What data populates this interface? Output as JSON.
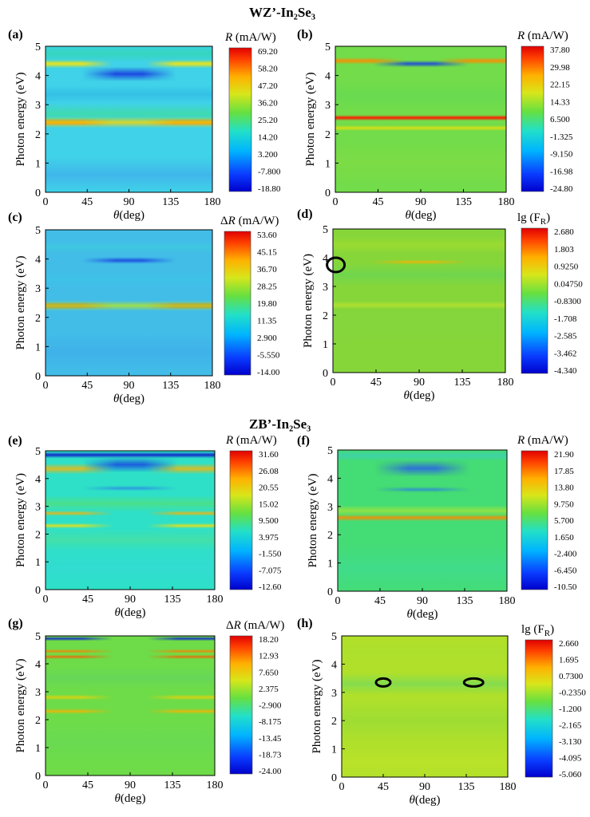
{
  "headings": {
    "top": "WZ’-In₂Se₃",
    "bottom": "ZB’-In₂Se₃"
  },
  "axis_text": {
    "ylabel": "Photon energy (eV)",
    "xlabel_unit": "(deg)",
    "xlabel_symbol": "θ"
  },
  "chart_data": [
    {
      "type": "heatmap",
      "panel": "(a)",
      "xlabel": "θ (deg)",
      "ylabel": "Photon energy (eV)",
      "xlim": [
        0,
        180
      ],
      "ylim": [
        0,
        5
      ],
      "xticks": [
        0,
        45,
        90,
        135,
        180
      ],
      "yticks": [
        0,
        1,
        2,
        3,
        4,
        5
      ],
      "colorbar_title": "R (mA/W)",
      "colorbar_ticks": [
        "69.20",
        "58.20",
        "47.20",
        "36.20",
        "25.20",
        "14.20",
        "3.200",
        "-7.800",
        "-18.80"
      ],
      "background": "#3fd2e8",
      "features": [
        {
          "E": 0.6,
          "width": 0.6,
          "color": "#41a4ec",
          "span": "full",
          "strength": 0.6
        },
        {
          "E": 2.4,
          "width": 0.12,
          "color": "#ff2a00",
          "span": "edges",
          "strength": 1.0
        },
        {
          "E": 2.4,
          "width": 0.2,
          "color": "#ffd400",
          "span": "full",
          "strength": 0.85
        },
        {
          "E": 2.7,
          "width": 0.35,
          "color": "#3fe07a",
          "span": "full",
          "strength": 0.5
        },
        {
          "E": 3.35,
          "width": 0.3,
          "color": "#2aaee6",
          "span": "full",
          "strength": 0.5
        },
        {
          "E": 4.05,
          "width": 0.25,
          "color": "#1a40e0",
          "span": "center",
          "strength": 0.95
        },
        {
          "E": 4.4,
          "width": 0.15,
          "color": "#ffe600",
          "span": "edges",
          "strength": 0.9
        },
        {
          "E": 4.75,
          "width": 0.3,
          "color": "#2cd8a0",
          "span": "full",
          "strength": 0.6
        }
      ]
    },
    {
      "type": "heatmap",
      "panel": "(b)",
      "xlabel": "θ (deg)",
      "ylabel": "Photon energy (eV)",
      "xlim": [
        0,
        180
      ],
      "ylim": [
        0,
        5
      ],
      "xticks": [
        0,
        45,
        90,
        135,
        180
      ],
      "yticks": [
        0,
        1,
        2,
        3,
        4,
        5
      ],
      "colorbar_title": "R (mA/W)",
      "colorbar_ticks": [
        "37.80",
        "29.98",
        "22.15",
        "14.33",
        "6.500",
        "-1.325",
        "-9.150",
        "-16.98",
        "-24.80"
      ],
      "background": "#72dc4a",
      "features": [
        {
          "E": 1.0,
          "width": 0.8,
          "color": "#86dd40",
          "span": "full",
          "strength": 0.5
        },
        {
          "E": 2.2,
          "width": 0.1,
          "color": "#ffe000",
          "span": "full",
          "strength": 0.7
        },
        {
          "E": 2.55,
          "width": 0.1,
          "color": "#ff1a00",
          "span": "full",
          "strength": 1.0
        },
        {
          "E": 3.3,
          "width": 0.5,
          "color": "#5ad85a",
          "span": "full",
          "strength": 0.4
        },
        {
          "E": 4.4,
          "width": 0.12,
          "color": "#1a40e0",
          "span": "center",
          "strength": 0.9
        },
        {
          "E": 4.5,
          "width": 0.12,
          "color": "#ff8a00",
          "span": "edges",
          "strength": 0.9
        }
      ]
    },
    {
      "type": "heatmap",
      "panel": "(c)",
      "xlabel": "θ (deg)",
      "ylabel": "Photon energy (eV)",
      "xlim": [
        0,
        180
      ],
      "ylim": [
        0,
        5
      ],
      "xticks": [
        0,
        45,
        90,
        135,
        180
      ],
      "yticks": [
        0,
        1,
        2,
        3,
        4,
        5
      ],
      "colorbar_title": "ΔR (mA/W)",
      "colorbar_ticks": [
        "53.60",
        "45.15",
        "36.70",
        "28.25",
        "19.80",
        "11.35",
        "2.900",
        "-5.550",
        "-14.00"
      ],
      "background": "#42bde8",
      "features": [
        {
          "E": 0.8,
          "width": 0.7,
          "color": "#3ca6ea",
          "span": "full",
          "strength": 0.5
        },
        {
          "E": 2.4,
          "width": 0.12,
          "color": "#ff3000",
          "span": "edges",
          "strength": 1.0
        },
        {
          "E": 2.4,
          "width": 0.18,
          "color": "#b4e628",
          "span": "full",
          "strength": 0.8
        },
        {
          "E": 3.3,
          "width": 0.3,
          "color": "#3ac8e6",
          "span": "full",
          "strength": 0.5
        },
        {
          "E": 3.95,
          "width": 0.12,
          "color": "#1a48e0",
          "span": "center",
          "strength": 0.9
        },
        {
          "E": 4.4,
          "width": 0.2,
          "color": "#3ad2d8",
          "span": "full",
          "strength": 0.5
        }
      ]
    },
    {
      "type": "heatmap",
      "panel": "(d)",
      "xlabel": "θ (deg)",
      "ylabel": "Photon energy (eV)",
      "xlim": [
        0,
        180
      ],
      "ylim": [
        0,
        5
      ],
      "xticks": [
        0,
        45,
        90,
        135,
        180
      ],
      "yticks": [
        0,
        1,
        2,
        3,
        4,
        5
      ],
      "colorbar_title": "lg (F_R)",
      "colorbar_ticks": [
        "2.680",
        "1.803",
        "0.9250",
        "0.04750",
        "-0.8300",
        "-1.708",
        "-2.585",
        "-3.462",
        "-4.340"
      ],
      "background": "#86d63a",
      "features": [
        {
          "E": 1.8,
          "width": 0.8,
          "color": "#80d640",
          "span": "full",
          "strength": 0.4
        },
        {
          "E": 2.35,
          "width": 0.15,
          "color": "#c8e628",
          "span": "full",
          "strength": 0.6
        },
        {
          "E": 3.4,
          "width": 0.4,
          "color": "#4ed46a",
          "span": "full",
          "strength": 0.4
        },
        {
          "E": 3.85,
          "width": 0.08,
          "color": "#ffb000",
          "span": "center",
          "strength": 0.8
        },
        {
          "E": 4.45,
          "width": 0.3,
          "color": "#aee028",
          "span": "full",
          "strength": 0.5
        }
      ],
      "markers": [
        {
          "theta": 3,
          "E": 3.75,
          "rx": 11,
          "ry": 9
        }
      ]
    },
    {
      "type": "heatmap",
      "panel": "(e)",
      "xlabel": "θ (deg)",
      "ylabel": "Photon energy (eV)",
      "xlim": [
        0,
        180
      ],
      "ylim": [
        0,
        5
      ],
      "xticks": [
        0,
        45,
        90,
        135,
        180
      ],
      "yticks": [
        0,
        1,
        2,
        3,
        4,
        5
      ],
      "colorbar_title": "R (mA/W)",
      "colorbar_ticks": [
        "31.60",
        "26.08",
        "20.55",
        "15.02",
        "9.500",
        "3.975",
        "-1.550",
        "-7.075",
        "-12.60"
      ],
      "background": "#2ee0c8",
      "features": [
        {
          "E": 0.8,
          "width": 0.8,
          "color": "#34d8d8",
          "span": "full",
          "strength": 0.5
        },
        {
          "E": 1.8,
          "width": 0.4,
          "color": "#58e08a",
          "span": "full",
          "strength": 0.5
        },
        {
          "E": 2.3,
          "width": 0.1,
          "color": "#ffe000",
          "span": "edges",
          "strength": 0.8
        },
        {
          "E": 2.75,
          "width": 0.1,
          "color": "#ffb000",
          "span": "edges",
          "strength": 0.8
        },
        {
          "E": 3.1,
          "width": 0.3,
          "color": "#64e050",
          "span": "full",
          "strength": 0.5
        },
        {
          "E": 3.65,
          "width": 0.1,
          "color": "#2a80e8",
          "span": "center",
          "strength": 0.7
        },
        {
          "E": 4.35,
          "width": 0.2,
          "color": "#ffb400",
          "span": "edges",
          "strength": 0.8
        },
        {
          "E": 4.5,
          "width": 0.28,
          "color": "#1a4ee0",
          "span": "center",
          "strength": 0.9
        },
        {
          "E": 4.85,
          "width": 0.12,
          "color": "#1020c8",
          "span": "full",
          "strength": 0.95
        }
      ]
    },
    {
      "type": "heatmap",
      "panel": "(f)",
      "xlabel": "θ (deg)",
      "ylabel": "Photon energy (eV)",
      "xlim": [
        0,
        180
      ],
      "ylim": [
        0,
        5
      ],
      "xticks": [
        0,
        45,
        90,
        135,
        180
      ],
      "yticks": [
        0,
        1,
        2,
        3,
        4,
        5
      ],
      "colorbar_title": "R (mA/W)",
      "colorbar_ticks": [
        "21.90",
        "17.85",
        "13.80",
        "9.750",
        "5.700",
        "1.650",
        "-2.400",
        "-6.450",
        "-10.50"
      ],
      "background": "#44dc74",
      "features": [
        {
          "E": 0.8,
          "width": 0.9,
          "color": "#3cdca0",
          "span": "full",
          "strength": 0.5
        },
        {
          "E": 2.6,
          "width": 0.12,
          "color": "#ff8a00",
          "span": "full",
          "strength": 0.9
        },
        {
          "E": 2.85,
          "width": 0.2,
          "color": "#c0e628",
          "span": "full",
          "strength": 0.6
        },
        {
          "E": 3.6,
          "width": 0.1,
          "color": "#2a7ae8",
          "span": "center",
          "strength": 0.7
        },
        {
          "E": 4.35,
          "width": 0.3,
          "color": "#2a60e6",
          "span": "center",
          "strength": 0.85
        },
        {
          "E": 4.8,
          "width": 0.2,
          "color": "#38c8d8",
          "span": "full",
          "strength": 0.5
        }
      ]
    },
    {
      "type": "heatmap",
      "panel": "(g)",
      "xlabel": "θ (deg)",
      "ylabel": "Photon energy (eV)",
      "xlim": [
        0,
        180
      ],
      "ylim": [
        0,
        5
      ],
      "xticks": [
        0,
        45,
        90,
        135,
        180
      ],
      "yticks": [
        0,
        1,
        2,
        3,
        4,
        5
      ],
      "colorbar_title": "ΔR (mA/W)",
      "colorbar_ticks": [
        "18.20",
        "12.93",
        "7.650",
        "2.375",
        "-2.900",
        "-8.175",
        "-13.45",
        "-18.73",
        "-24.00"
      ],
      "background": "#6edc48",
      "features": [
        {
          "E": 1.2,
          "width": 0.8,
          "color": "#62d860",
          "span": "full",
          "strength": 0.4
        },
        {
          "E": 2.3,
          "width": 0.1,
          "color": "#ffb000",
          "span": "edges",
          "strength": 0.8
        },
        {
          "E": 2.8,
          "width": 0.1,
          "color": "#ffd000",
          "span": "edges",
          "strength": 0.7
        },
        {
          "E": 3.5,
          "width": 0.4,
          "color": "#5ad070",
          "span": "full",
          "strength": 0.4
        },
        {
          "E": 4.25,
          "width": 0.08,
          "color": "#ff5a00",
          "span": "edges",
          "strength": 0.8
        },
        {
          "E": 4.45,
          "width": 0.08,
          "color": "#ff8000",
          "span": "edges",
          "strength": 0.8
        },
        {
          "E": 4.9,
          "width": 0.08,
          "color": "#1020d0",
          "span": "edges",
          "strength": 0.9
        }
      ]
    },
    {
      "type": "heatmap",
      "panel": "(h)",
      "xlabel": "θ (deg)",
      "ylabel": "Photon energy (eV)",
      "xlim": [
        0,
        180
      ],
      "ylim": [
        0,
        5
      ],
      "xticks": [
        0,
        45,
        90,
        135,
        180
      ],
      "yticks": [
        0,
        1,
        2,
        3,
        4,
        5
      ],
      "colorbar_title": "lg (F_R)",
      "colorbar_ticks": [
        "2.660",
        "1.695",
        "0.7300",
        "-0.2350",
        "-1.200",
        "-2.165",
        "-3.130",
        "-4.095",
        "-5.060"
      ],
      "background": "#b0e02a",
      "features": [
        {
          "E": 0.5,
          "width": 0.6,
          "color": "#c4e42a",
          "span": "full",
          "strength": 0.5
        },
        {
          "E": 2.0,
          "width": 0.8,
          "color": "#84d840",
          "span": "full",
          "strength": 0.4
        },
        {
          "E": 3.3,
          "width": 0.4,
          "color": "#5cd870",
          "span": "full",
          "strength": 0.5
        },
        {
          "E": 4.4,
          "width": 0.4,
          "color": "#a8e030",
          "span": "full",
          "strength": 0.4
        }
      ],
      "markers": [
        {
          "theta": 45,
          "E": 3.35,
          "rx": 9,
          "ry": 5
        },
        {
          "theta": 143,
          "E": 3.35,
          "rx": 12,
          "ry": 5
        }
      ]
    }
  ]
}
